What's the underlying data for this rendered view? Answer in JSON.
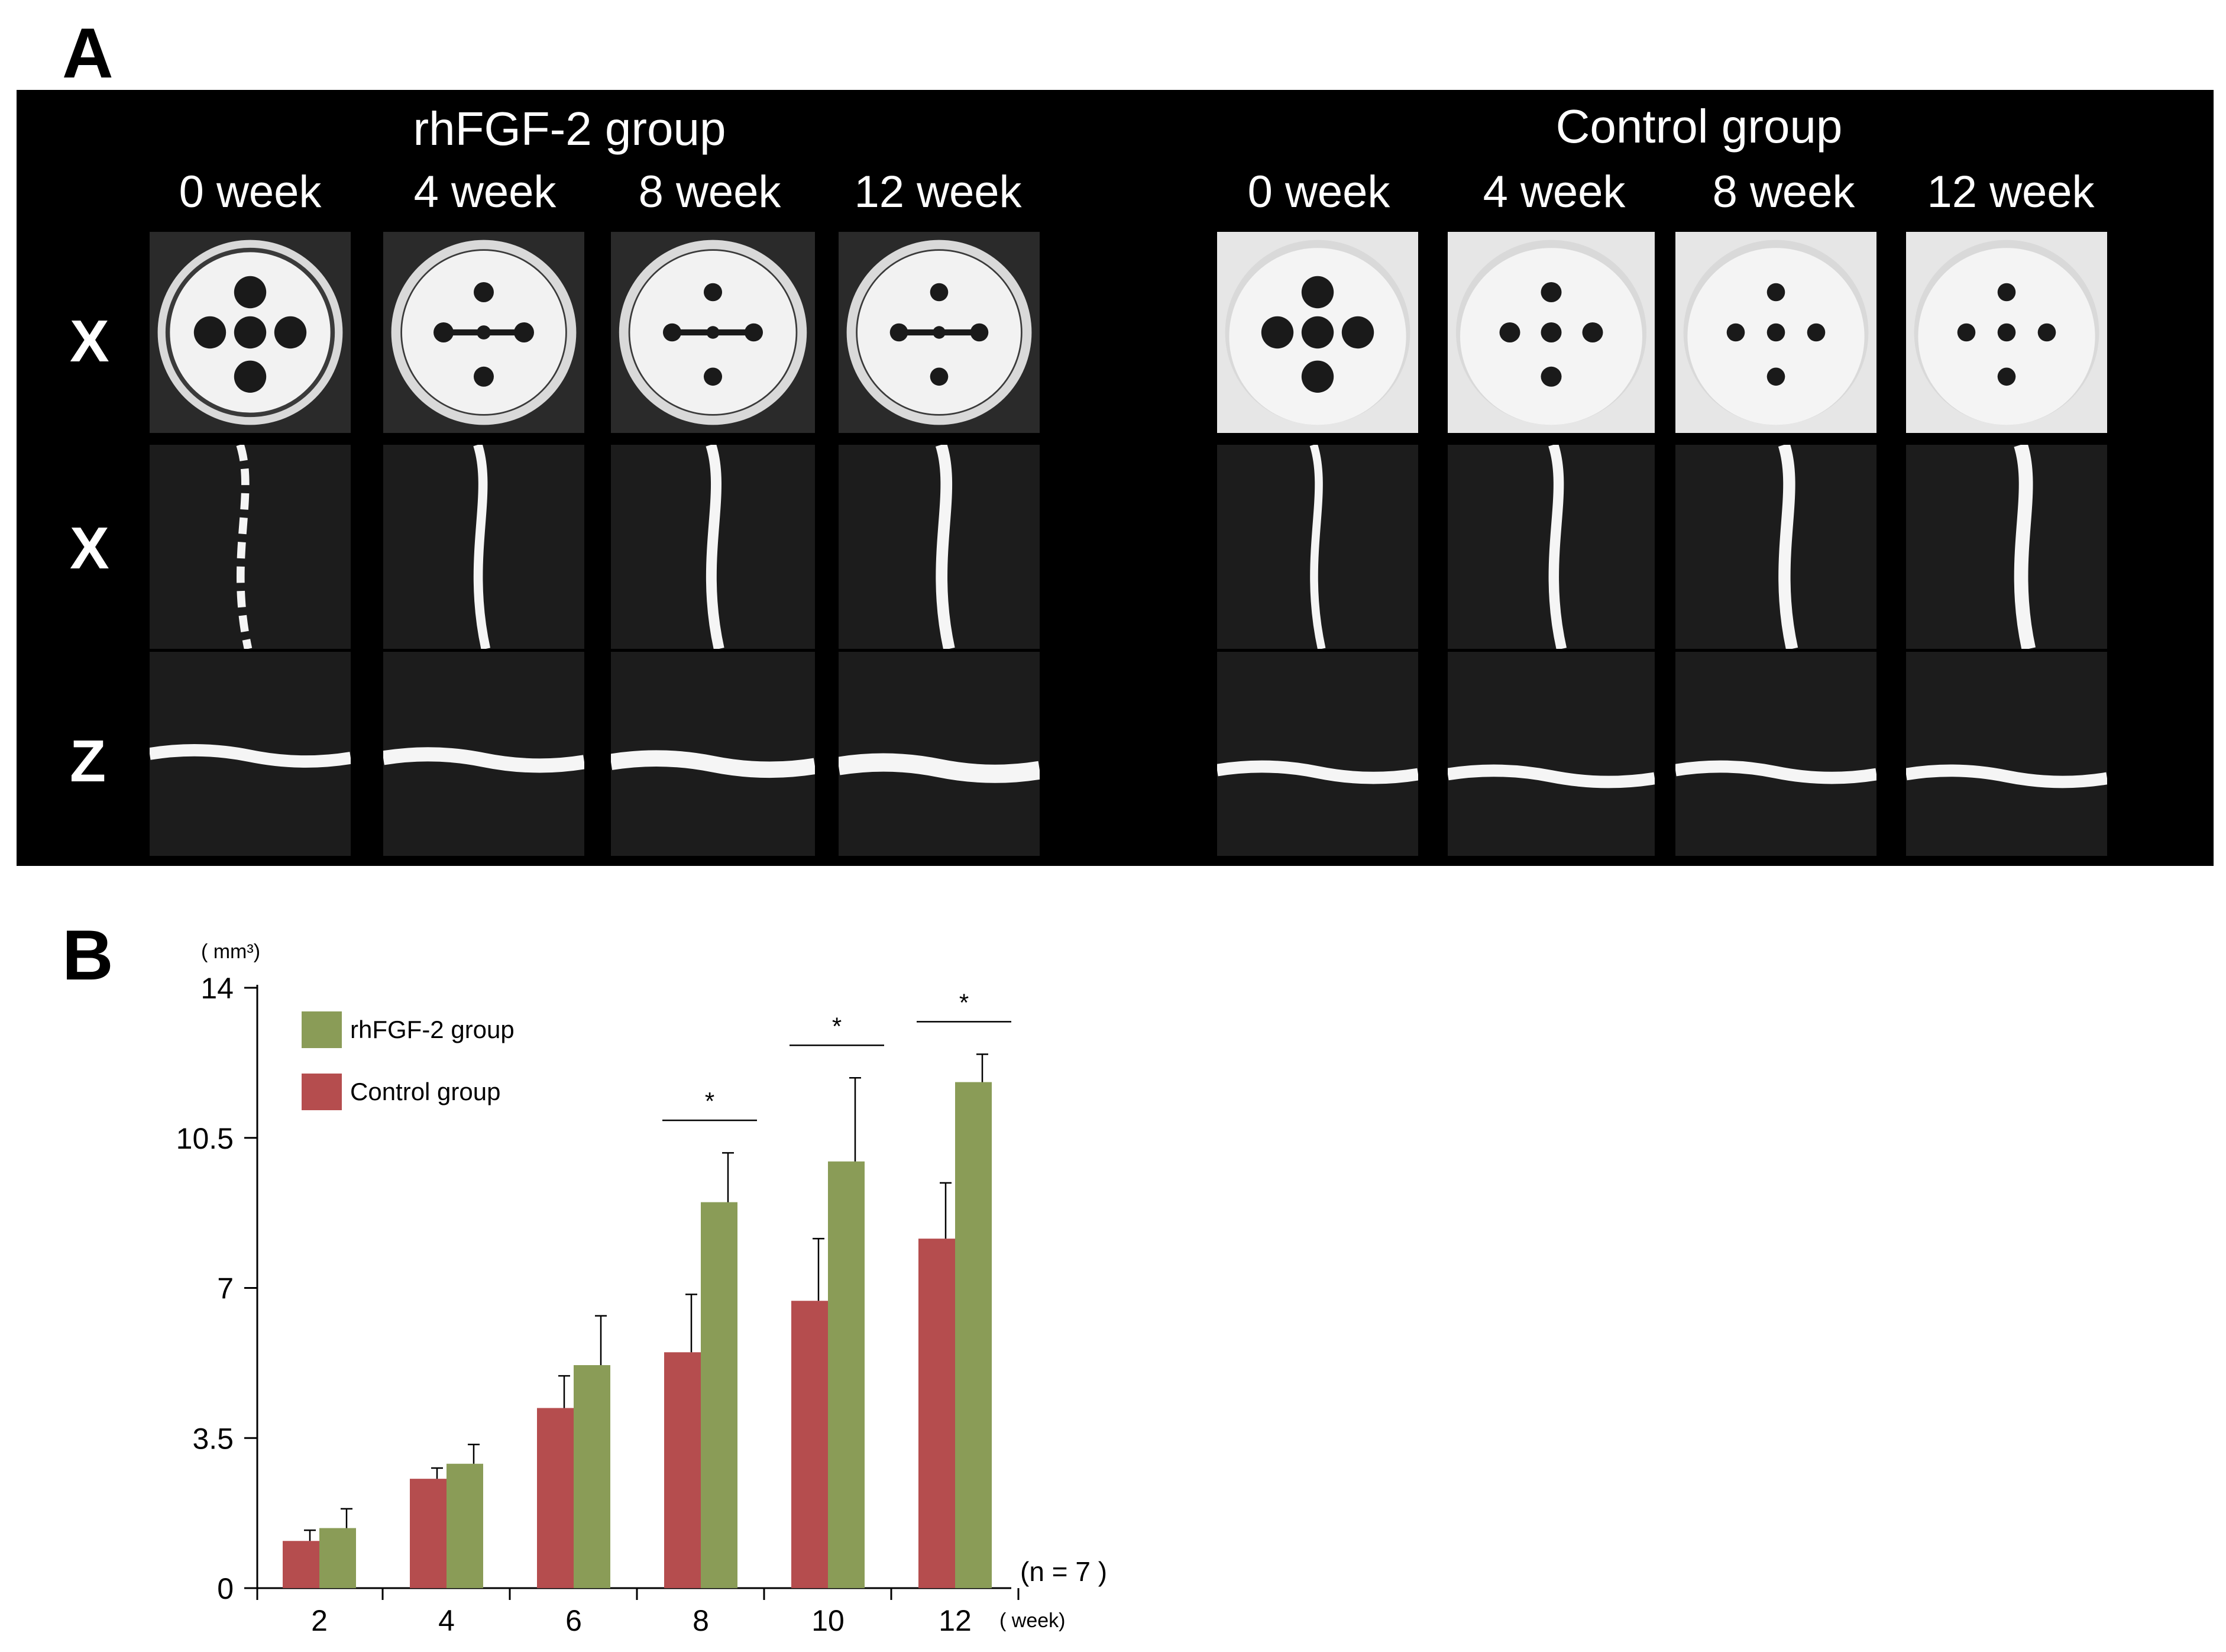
{
  "panel_a": {
    "letter": "A",
    "groups": [
      {
        "title": "rhFGF-2 group",
        "weeks": [
          "0 week",
          "4 week",
          "8 week",
          "12 week"
        ]
      },
      {
        "title": "Control group",
        "weeks": [
          "0 week",
          "4 week",
          "8 week",
          "12 week"
        ]
      }
    ],
    "row_labels": [
      "X",
      "X",
      "Z"
    ],
    "image_kinds": [
      "axial-section",
      "sagittal-section",
      "coronal-section"
    ]
  },
  "panel_b": {
    "letter": "B",
    "colors": {
      "rhFGF-2 group": "#8a9c57",
      "Control group": "#b54d4e"
    },
    "chart_data": {
      "type": "bar",
      "categories": [
        "2",
        "4",
        "6",
        "8",
        "10",
        "12"
      ],
      "series": [
        {
          "name": "Control group",
          "values": [
            1.1,
            2.55,
            4.2,
            5.5,
            6.7,
            8.15
          ],
          "errors": [
            0.25,
            0.25,
            0.75,
            1.35,
            1.45,
            1.3
          ]
        },
        {
          "name": "rhFGF-2 group",
          "values": [
            1.4,
            2.9,
            5.2,
            9.0,
            9.95,
            11.8
          ],
          "errors": [
            0.45,
            0.45,
            1.15,
            1.15,
            1.95,
            0.65
          ]
        }
      ],
      "significance": [
        "",
        "",
        "",
        "*",
        "*",
        "*"
      ],
      "ylim": [
        0,
        14
      ],
      "yticks": [
        "0",
        "3.5",
        "7",
        "10.5",
        "14"
      ],
      "yunit": "( mm³)",
      "xunit": "( week)",
      "annotation": "(n = 7 )",
      "legend_position": "top-left"
    }
  }
}
